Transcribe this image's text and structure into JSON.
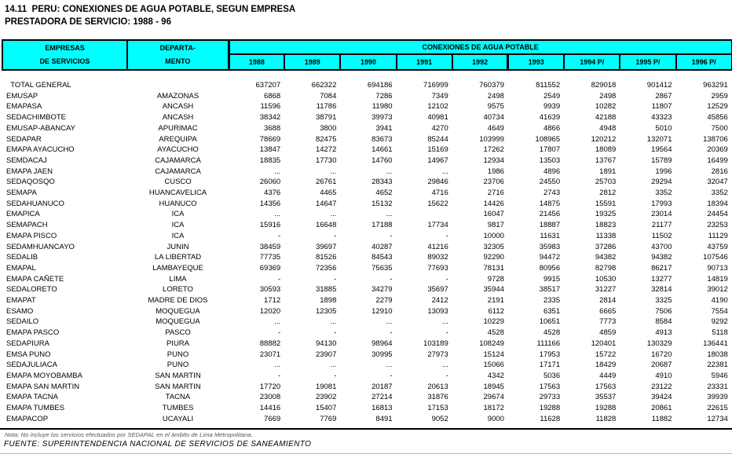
{
  "title": {
    "line1": "14.11  PERU: CONEXIONES DE AGUA POTABLE, SEGUN EMPRESA",
    "line2": "PRESTADORA DE SERVICIO: 1988 - 96"
  },
  "colors": {
    "header_bg": "#00ffff",
    "border": "#000000",
    "text": "#000000"
  },
  "table": {
    "col1_header_line1": "EMPRESAS",
    "col1_header_line2": "DE SERVICIOS",
    "col2_header_line1": "DEPARTA-",
    "col2_header_line2": "MENTO",
    "span_header": "CONEXIONES DE AGUA POTABLE",
    "year_columns": [
      "1988",
      "1989",
      "1990",
      "1991",
      "1992",
      "1993",
      "1994 P/",
      "1995 P/",
      "1996 P/"
    ],
    "rows": [
      {
        "empresa": "  TOTAL GENERAL",
        "departamento": "",
        "values": [
          "637207",
          "662322",
          "694186",
          "716999",
          "760379",
          "811552",
          "829018",
          "901412",
          "963291"
        ]
      },
      {
        "empresa": "EMUSAP",
        "departamento": "AMAZONAS",
        "values": [
          "6868",
          "7084",
          "7286",
          "7349",
          "2498",
          "2549",
          "2498",
          "2867",
          "2959"
        ]
      },
      {
        "empresa": "EMAPASA",
        "departamento": "ANCASH",
        "values": [
          "11596",
          "11786",
          "11980",
          "12102",
          "9575",
          "9939",
          "10282",
          "11807",
          "12529"
        ]
      },
      {
        "empresa": "SEDACHIMBOTE",
        "departamento": "ANCASH",
        "values": [
          "38342",
          "38791",
          "39973",
          "40981",
          "40734",
          "41639",
          "42188",
          "43323",
          "45856"
        ]
      },
      {
        "empresa": "EMUSAP-ABANCAY",
        "departamento": "APURIMAC",
        "values": [
          "3688",
          "3800",
          "3941",
          "4270",
          "4649",
          "4866",
          "4948",
          "5010",
          "7500"
        ]
      },
      {
        "empresa": "SEDAPAR",
        "departamento": "AREQUIPA",
        "values": [
          "78669",
          "82475",
          "83673",
          "85244",
          "103999",
          "108965",
          "120212",
          "132071",
          "138706"
        ]
      },
      {
        "empresa": "EMAPA AYACUCHO",
        "departamento": "AYACUCHO",
        "values": [
          "13847",
          "14272",
          "14661",
          "15169",
          "17262",
          "17807",
          "18089",
          "19564",
          "20369"
        ]
      },
      {
        "empresa": "SEMDACAJ",
        "departamento": "CAJAMARCA",
        "values": [
          "18835",
          "17730",
          "14760",
          "14967",
          "12934",
          "13503",
          "13767",
          "15789",
          "16499"
        ]
      },
      {
        "empresa": "EMAPA JAEN",
        "departamento": "CAJAMARCA",
        "values": [
          "...",
          "...",
          "...",
          "...",
          "1986",
          "4896",
          "1891",
          "1996",
          "2816"
        ]
      },
      {
        "empresa": "SEDAQOSQO",
        "departamento": "CUSCO",
        "values": [
          "26060",
          "26761",
          "28343",
          "29846",
          "23706",
          "24550",
          "25703",
          "29294",
          "32047"
        ]
      },
      {
        "empresa": "SEMAPA",
        "departamento": "HUANCAVELICA",
        "values": [
          "4376",
          "4465",
          "4652",
          "4716",
          "2716",
          "2743",
          "2812",
          "3352",
          "3352"
        ]
      },
      {
        "empresa": "SEDAHUANUCO",
        "departamento": "HUANUCO",
        "values": [
          "14356",
          "14647",
          "15132",
          "15622",
          "14426",
          "14875",
          "15591",
          "17993",
          "18394"
        ]
      },
      {
        "empresa": "EMAPICA",
        "departamento": "ICA",
        "values": [
          "...",
          "...",
          "...",
          "",
          "16047",
          "21456",
          "19325",
          "23014",
          "24454"
        ]
      },
      {
        "empresa": "SEMAPACH",
        "departamento": "ICA",
        "values": [
          "15916",
          "16648",
          "17188",
          "17734",
          "9817",
          "18887",
          "18823",
          "21177",
          "23253"
        ]
      },
      {
        "empresa": "EMAPA PISCO",
        "departamento": "ICA",
        "values": [
          "-",
          "-",
          "-",
          "-",
          "10000",
          "11631",
          "11338",
          "11502",
          "11129"
        ]
      },
      {
        "empresa": "SEDAMHUANCAYO",
        "departamento": "JUNIN",
        "values": [
          "38459",
          "39697",
          "40287",
          "41216",
          "32305",
          "35983",
          "37286",
          "43700",
          "43759"
        ]
      },
      {
        "empresa": "SEDALIB",
        "departamento": "LA LIBERTAD",
        "values": [
          "77735",
          "81526",
          "84543",
          "89032",
          "92290",
          "94472",
          "94382",
          "94382",
          "107546"
        ]
      },
      {
        "empresa": "EMAPAL",
        "departamento": "LAMBAYEQUE",
        "values": [
          "69369",
          "72356",
          "75635",
          "77693",
          "78131",
          "80956",
          "82798",
          "86217",
          "90713"
        ]
      },
      {
        "empresa": "EMAPA CAÑETE",
        "departamento": "LIMA",
        "values": [
          "-",
          "-",
          "-",
          "-",
          "9728",
          "9915",
          "10530",
          "13277",
          "14819"
        ]
      },
      {
        "empresa": "SEDALORETO",
        "departamento": "LORETO",
        "values": [
          "30593",
          "31885",
          "34279",
          "35697",
          "35944",
          "38517",
          "31227",
          "32814",
          "39012"
        ]
      },
      {
        "empresa": "EMAPAT",
        "departamento": "MADRE DE DIOS",
        "values": [
          "1712",
          "1898",
          "2279",
          "2412",
          "2191",
          "2335",
          "2814",
          "3325",
          "4190"
        ]
      },
      {
        "empresa": "ESAMO",
        "departamento": "MOQUEGUA",
        "values": [
          "12020",
          "12305",
          "12910",
          "13093",
          "6112",
          "6351",
          "6665",
          "7506",
          "7554"
        ]
      },
      {
        "empresa": "SEDAILO",
        "departamento": "MOQUEGUA",
        "values": [
          "...",
          "...",
          "...",
          "...",
          "10229",
          "10651",
          "7773",
          "8584",
          "9292"
        ]
      },
      {
        "empresa": "EMAPA PASCO",
        "departamento": "PASCO",
        "values": [
          "-",
          "-",
          "-",
          "-",
          "4528",
          "4528",
          "4859",
          "4913",
          "5118"
        ]
      },
      {
        "empresa": "SEDAPIURA",
        "departamento": "PIURA",
        "values": [
          "88882",
          "94130",
          "98964",
          "103189",
          "108249",
          "111166",
          "120401",
          "130329",
          "136441"
        ]
      },
      {
        "empresa": "EMSA PUNO",
        "departamento": "PUNO",
        "values": [
          "23071",
          "23907",
          "30995",
          "27973",
          "15124",
          "17953",
          "15722",
          "16720",
          "18038"
        ]
      },
      {
        "empresa": "SEDAJULIACA",
        "departamento": "PUNO",
        "values": [
          "...",
          "...",
          "...",
          "...",
          "15066",
          "17171",
          "18429",
          "20687",
          "22381"
        ]
      },
      {
        "empresa": "EMAPA MOYOBAMBA",
        "departamento": "SAN MARTIN",
        "values": [
          "-",
          "-",
          "-",
          "-",
          "4342",
          "5036",
          "4449",
          "4910",
          "5946"
        ]
      },
      {
        "empresa": "EMAPA SAN MARTIN",
        "departamento": "SAN MARTIN",
        "values": [
          "17720",
          "19081",
          "20187",
          "20613",
          "18945",
          "17563",
          "17563",
          "23122",
          "23331"
        ]
      },
      {
        "empresa": "EMAPA TACNA",
        "departamento": "TACNA",
        "values": [
          "23008",
          "23902",
          "27214",
          "31876",
          "29674",
          "29733",
          "35537",
          "39424",
          "39939"
        ]
      },
      {
        "empresa": "EMAPA TUMBES",
        "departamento": "TUMBES",
        "values": [
          "14416",
          "15407",
          "16813",
          "17153",
          "18172",
          "19288",
          "19288",
          "20861",
          "22615"
        ]
      },
      {
        "empresa": "EMAPACOP",
        "departamento": "UCAYALI",
        "values": [
          "7669",
          "7769",
          "8491",
          "9052",
          "9000",
          "11628",
          "11828",
          "11882",
          "12734"
        ]
      }
    ]
  },
  "footer": {
    "nota": "Nota: No incluye los servicios efectuados por SEDAPAL en el ámbito de Lima Metropolitana.",
    "fuente": "FUENTE: SUPERINTENDENCIA NACIONAL DE SERVICIOS DE SANEAMIENTO"
  }
}
